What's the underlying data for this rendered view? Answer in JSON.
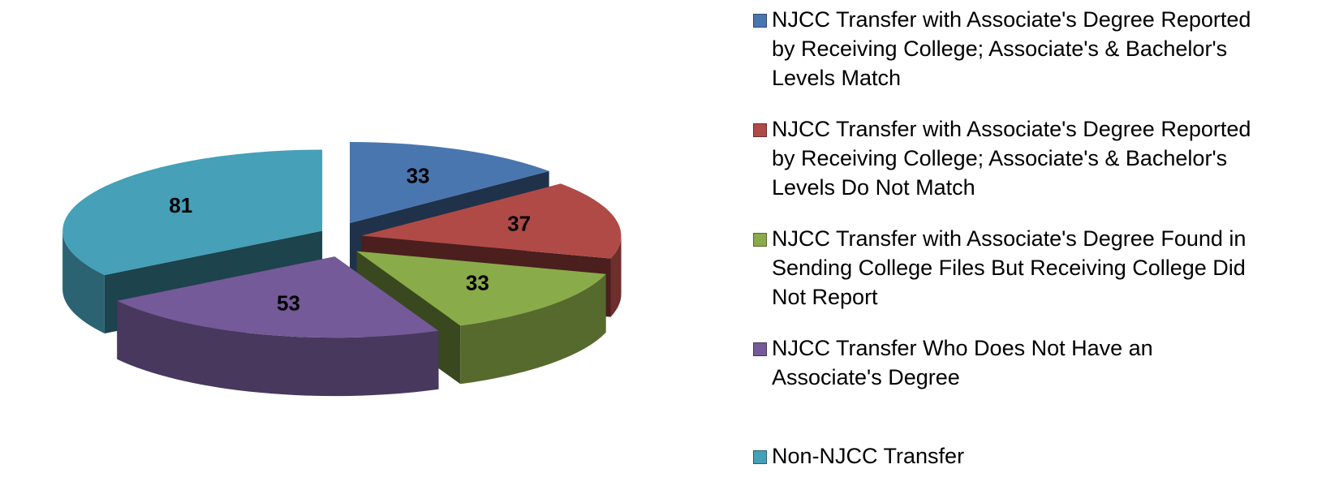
{
  "chart_data": {
    "type": "pie",
    "categories": [
      "NJCC Transfer with Associate's Degree Reported by Receiving College; Associate's & Bachelor's Levels Match",
      "NJCC Transfer with Associate's Degree Reported by Receiving College; Associate's & Bachelor's Levels Do Not Match",
      "NJCC Transfer with Associate's Degree Found in Sending College Files But Receiving College Did Not Report",
      "NJCC Transfer Who Does Not Have an Associate's Degree",
      "Non-NJCC Transfer"
    ],
    "values": [
      33,
      37,
      33,
      53,
      81
    ],
    "colors": [
      "#4a76b0",
      "#b04a47",
      "#8aab4a",
      "#745a98",
      "#45a0b8"
    ],
    "legend": "right"
  }
}
